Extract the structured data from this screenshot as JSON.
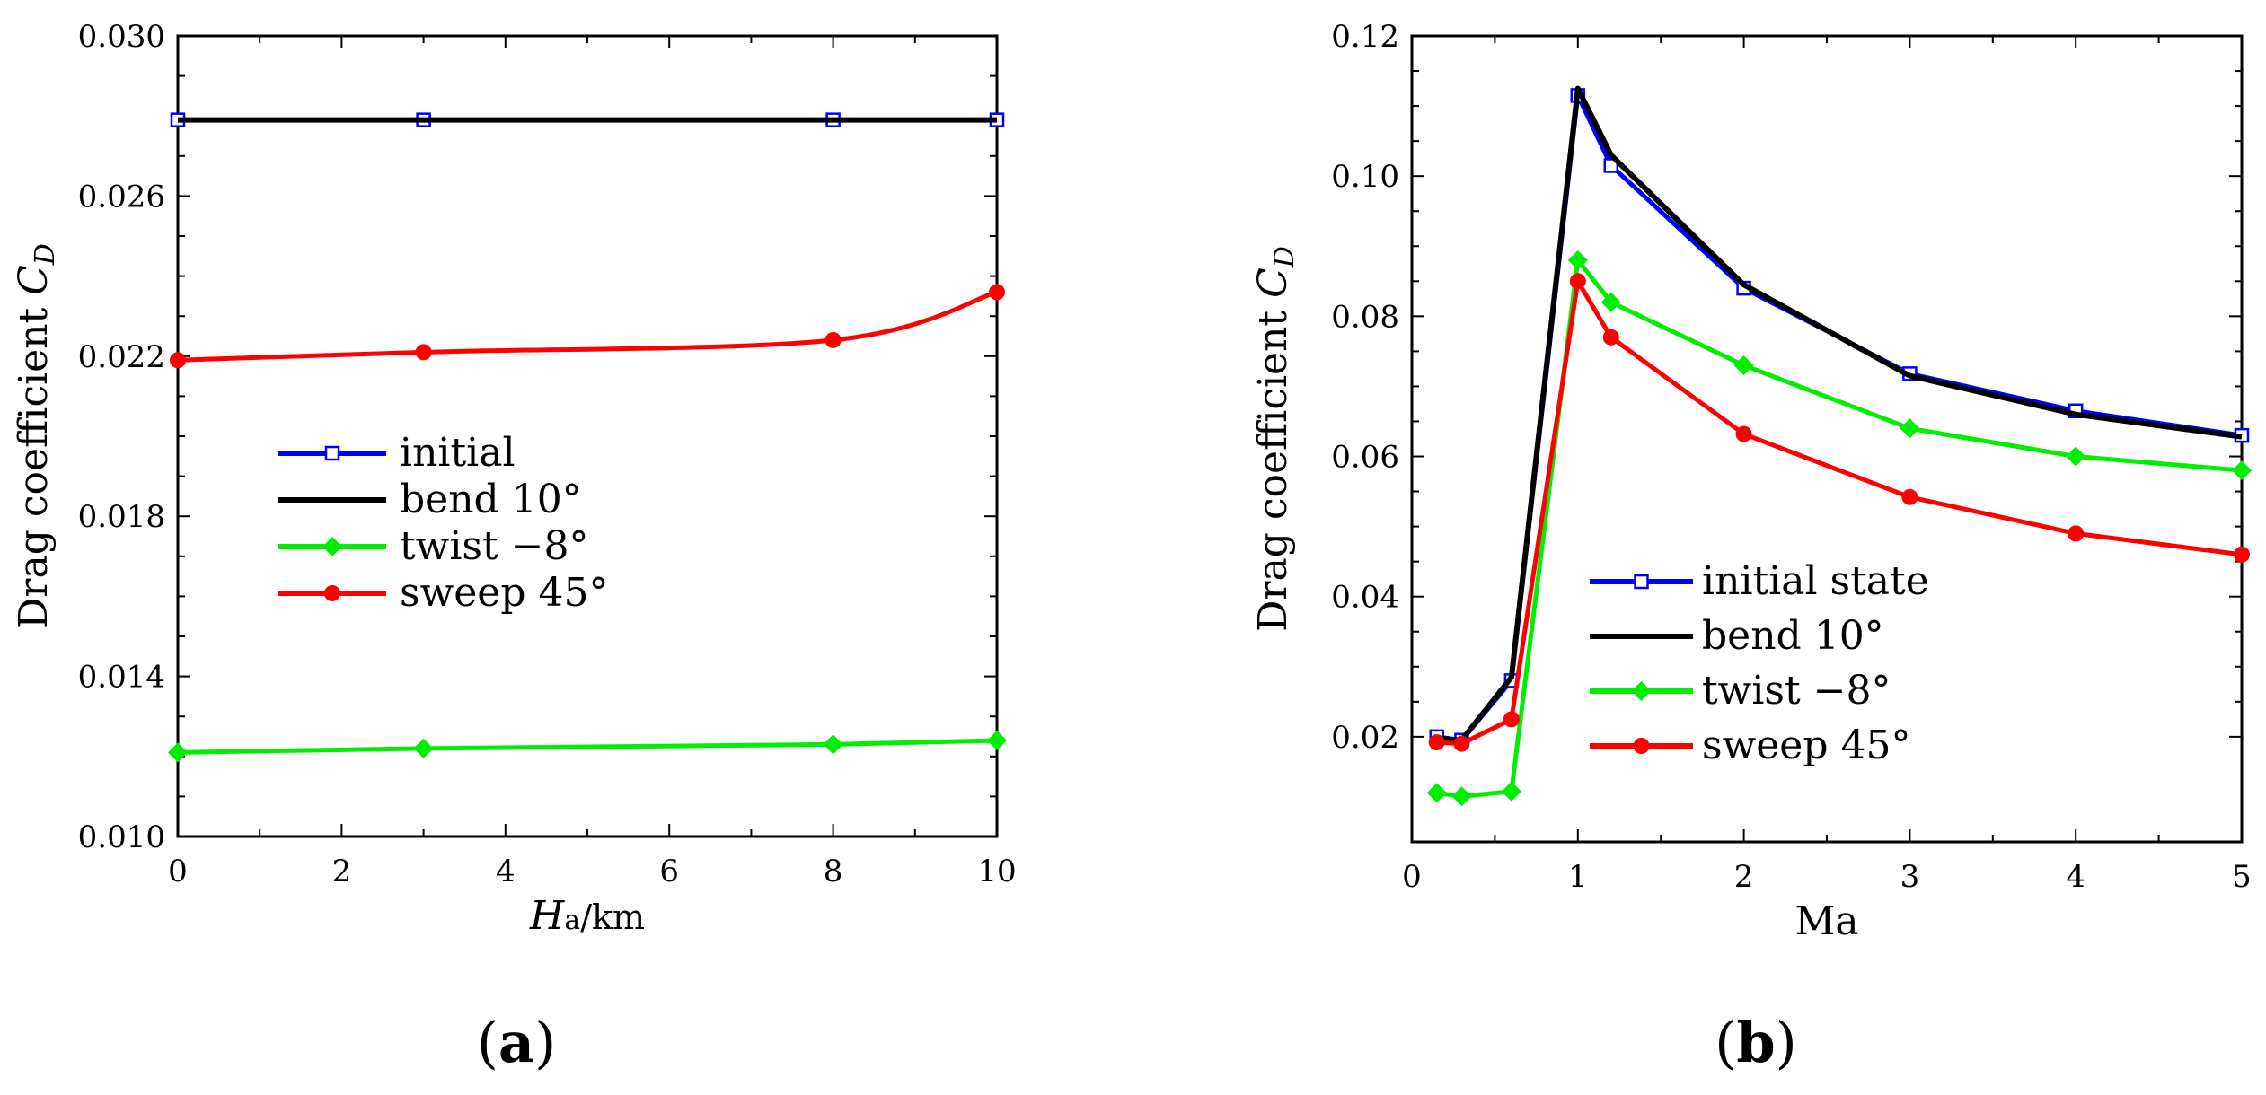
{
  "chart_data": [
    {
      "type": "line",
      "panel_label": "a",
      "ylabel_main": "Drag coefficient ",
      "ylabel_sym": "C",
      "ylabel_sub": "D",
      "xlabel_sym": "H",
      "xlabel_sub": "a",
      "xlabel_unit": "/km",
      "xlim": [
        0,
        10
      ],
      "ylim": [
        0.01,
        0.03
      ],
      "xticks": [
        0,
        2,
        4,
        6,
        8,
        10
      ],
      "xtick_labels": [
        "0",
        "2",
        "4",
        "6",
        "8",
        "10"
      ],
      "yticks": [
        0.01,
        0.014,
        0.018,
        0.022,
        0.026,
        0.03
      ],
      "ytick_labels": [
        "0.010",
        "0.014",
        "0.018",
        "0.022",
        "0.026",
        "0.030"
      ],
      "legend_position": "center-left",
      "series": [
        {
          "name": "initial",
          "color": "#0000ff",
          "marker": "square-open",
          "smooth": false,
          "x": [
            0,
            3,
            8,
            10
          ],
          "y": [
            0.0279,
            0.0279,
            0.0279,
            0.0279
          ]
        },
        {
          "name": "bend 10°",
          "color": "#000000",
          "marker": "none",
          "smooth": false,
          "x": [
            0,
            3,
            8,
            10
          ],
          "y": [
            0.0279,
            0.0279,
            0.0279,
            0.0279
          ]
        },
        {
          "name": "twist −8°",
          "color": "#00ee00",
          "marker": "diamond",
          "smooth": false,
          "x": [
            0,
            3,
            8,
            10
          ],
          "y": [
            0.0121,
            0.0122,
            0.0123,
            0.0124
          ]
        },
        {
          "name": "sweep 45°",
          "color": "#ff0000",
          "marker": "circle",
          "smooth": true,
          "x": [
            0,
            3,
            8,
            10
          ],
          "y": [
            0.0219,
            0.0221,
            0.0224,
            0.0236
          ]
        }
      ]
    },
    {
      "type": "line",
      "panel_label": "b",
      "ylabel_main": "Drag coefficient ",
      "ylabel_sym": "C",
      "ylabel_sub": "D",
      "xlabel": "Ma",
      "xlim": [
        0,
        5
      ],
      "ylim": [
        0.005,
        0.12
      ],
      "xticks": [
        0,
        1,
        2,
        3,
        4,
        5
      ],
      "xtick_labels": [
        "0",
        "1",
        "2",
        "3",
        "4",
        "5"
      ],
      "yticks": [
        0.02,
        0.04,
        0.06,
        0.08,
        0.1,
        0.12
      ],
      "ytick_labels": [
        "0.02",
        "0.04",
        "0.06",
        "0.08",
        "0.10",
        "0.12"
      ],
      "legend_position": "lower-center",
      "series": [
        {
          "name": "initial state",
          "color": "#0000ff",
          "marker": "square-open",
          "smooth": false,
          "x": [
            0.15,
            0.3,
            0.6,
            1.0,
            1.2,
            2.0,
            3.0,
            4.0,
            5.0
          ],
          "y": [
            0.02,
            0.0195,
            0.028,
            0.1115,
            0.1015,
            0.084,
            0.0718,
            0.0665,
            0.063
          ]
        },
        {
          "name": "bend 10°",
          "color": "#000000",
          "marker": "none",
          "smooth": false,
          "x": [
            0.15,
            0.3,
            0.6,
            1.0,
            1.2,
            2.0,
            3.0,
            4.0,
            5.0
          ],
          "y": [
            0.0198,
            0.0195,
            0.0285,
            0.1125,
            0.103,
            0.0845,
            0.0715,
            0.066,
            0.0628
          ]
        },
        {
          "name": "twist −8°",
          "color": "#00ee00",
          "marker": "diamond",
          "smooth": false,
          "x": [
            0.15,
            0.3,
            0.6,
            1.0,
            1.2,
            2.0,
            3.0,
            4.0,
            5.0
          ],
          "y": [
            0.012,
            0.0115,
            0.0122,
            0.088,
            0.082,
            0.073,
            0.064,
            0.06,
            0.058
          ]
        },
        {
          "name": "sweep 45°",
          "color": "#ff0000",
          "marker": "circle",
          "smooth": false,
          "x": [
            0.15,
            0.3,
            0.6,
            1.0,
            1.2,
            2.0,
            3.0,
            4.0,
            5.0
          ],
          "y": [
            0.0192,
            0.019,
            0.0225,
            0.085,
            0.077,
            0.0632,
            0.0542,
            0.049,
            0.046
          ]
        }
      ]
    }
  ]
}
